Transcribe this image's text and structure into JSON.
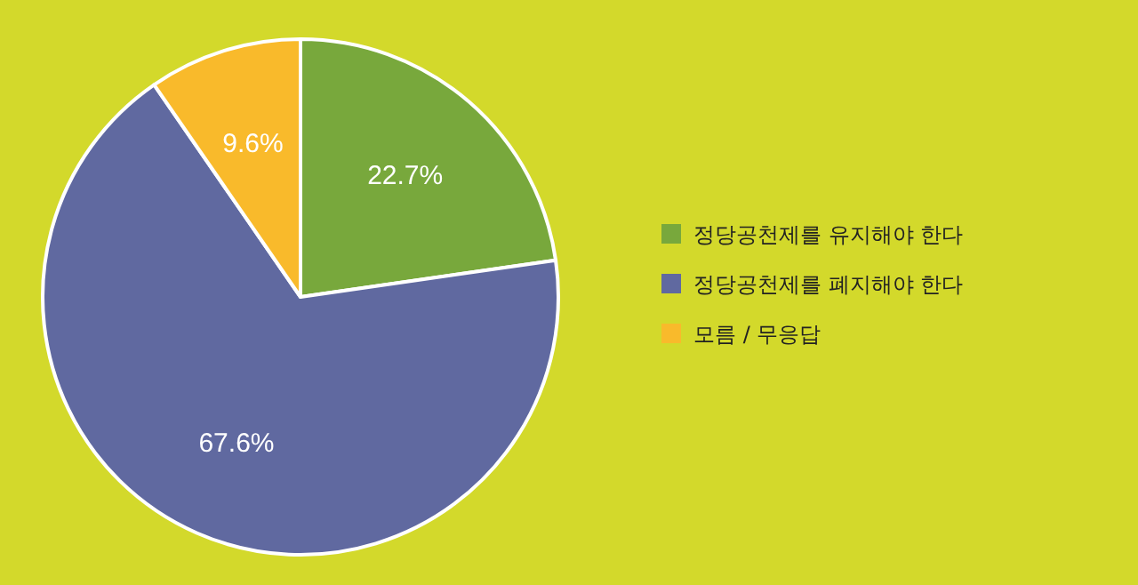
{
  "chart_data": {
    "type": "pie",
    "categories": [
      "정당공천제를 유지해야 한다",
      "정당공천제를 폐지해야 한다",
      "모름 / 무응답"
    ],
    "values": [
      22.7,
      67.6,
      9.6
    ],
    "colors": [
      "#78a83c",
      "#6069a0",
      "#f9ba2b"
    ],
    "value_labels": [
      "22.7%",
      "67.6%",
      "9.6%"
    ],
    "legend": "right"
  }
}
